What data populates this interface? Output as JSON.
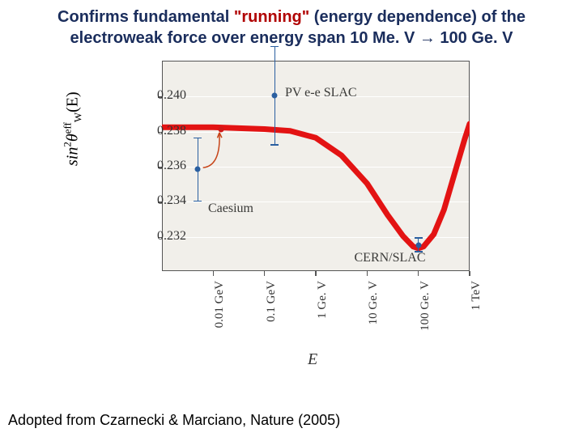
{
  "title": {
    "part1": "Confirms fundamental ",
    "part2_red": "\"running\"",
    "part3": " (energy dependence) of the",
    "line2a": "electroweak force over energy span 10 Me. V ",
    "arrow": "→",
    "line2b": " 100 Ge. V"
  },
  "footer": "Adopted from Czarnecki & Marciano, Nature (2005)",
  "chart": {
    "type": "line-with-points",
    "background_color": "#f1efea",
    "grid_color": "#ffffff",
    "axis_color": "#555555",
    "tick_fontsize": 16,
    "label_fontsize": 20,
    "ylabel_parts": {
      "pre": "sin",
      "sup": "2",
      "mid": "θ",
      "sub": "W",
      "suffix": "eff",
      "arg": "(E)"
    },
    "xlabel": "E",
    "ylim": [
      0.23,
      0.242
    ],
    "yticks": [
      0.232,
      0.234,
      0.236,
      0.238,
      0.24
    ],
    "xlim_log10_GeV": [
      -3,
      3
    ],
    "xticks": [
      {
        "log10": -2,
        "label": "0.01 GeV"
      },
      {
        "log10": -1,
        "label": "0.1 GeV"
      },
      {
        "log10": 0,
        "label": "1 Ge. V"
      },
      {
        "log10": 1,
        "label": "10 Ge. V"
      },
      {
        "log10": 2,
        "label": "100 Ge. V"
      },
      {
        "log10": 3,
        "label": "1 TeV"
      }
    ],
    "curve": {
      "color": "#e31313",
      "width": 7,
      "points_logx_y": [
        [
          -3,
          0.2382
        ],
        [
          -2,
          0.2382
        ],
        [
          -1,
          0.2381
        ],
        [
          -0.5,
          0.238
        ],
        [
          0,
          0.2376
        ],
        [
          0.5,
          0.2366
        ],
        [
          1,
          0.235
        ],
        [
          1.4,
          0.2332
        ],
        [
          1.7,
          0.232
        ],
        [
          1.9,
          0.2314
        ],
        [
          2.0,
          0.2313
        ],
        [
          2.1,
          0.2314
        ],
        [
          2.3,
          0.2321
        ],
        [
          2.5,
          0.2335
        ],
        [
          2.7,
          0.2355
        ],
        [
          2.9,
          0.2375
        ],
        [
          3.0,
          0.2384
        ]
      ]
    },
    "datapoints": [
      {
        "name": "caesium",
        "logx": -2.3,
        "y": 0.2358,
        "err": 0.0018,
        "color": "#2a5fa0"
      },
      {
        "name": "caesium-red",
        "logx": -1.85,
        "y": 0.2381,
        "err": 0,
        "color": "#d01818"
      },
      {
        "name": "pvee",
        "logx": -0.8,
        "y": 0.24,
        "err": 0.0028,
        "color": "#2a5fa0"
      },
      {
        "name": "cern",
        "logx": 2.0,
        "y": 0.2315,
        "err": 0.0004,
        "color": "#2a5fa0"
      }
    ],
    "annotations": [
      {
        "name": "caesium-label",
        "text": "Caesium",
        "logx": -2.1,
        "y": 0.2336
      },
      {
        "name": "pvee-label",
        "text": "PV e-e SLAC",
        "logx": -0.6,
        "y": 0.2402
      },
      {
        "name": "cern-label",
        "text": "CERN/SLAC",
        "logx": 0.75,
        "y": 0.2308
      }
    ],
    "pointer_arrow": {
      "color": "#c74418",
      "from_logx": -2.2,
      "from_y": 0.2359,
      "to_logx": -1.88,
      "to_y": 0.2379,
      "ctrl_logx": -1.85,
      "ctrl_y": 0.236
    }
  }
}
